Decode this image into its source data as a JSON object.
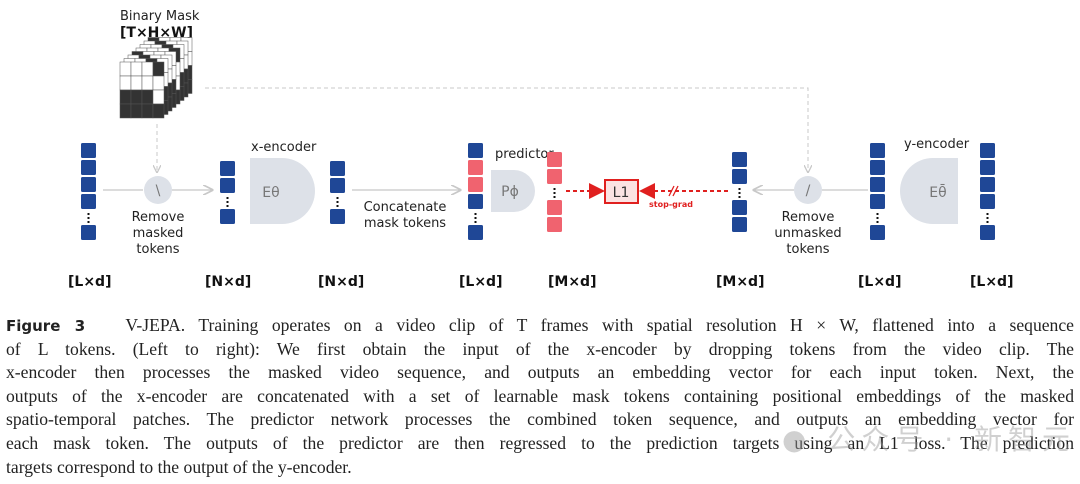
{
  "diagram": {
    "mask_title": "Binary Mask",
    "mask_dims": "[T×H×W]",
    "x_encoder_label": "x-encoder",
    "x_encoder_symbol": "Eθ",
    "predictor_label": "predictor",
    "predictor_symbol": "Pϕ",
    "y_encoder_label": "y-encoder",
    "y_encoder_symbol": "Eθ̄",
    "loss_label": "L1",
    "stop_grad_label": "stop-grad",
    "remove_masked": [
      "Remove",
      "masked",
      "tokens"
    ],
    "remove_unmasked": [
      "Remove",
      "unmasked",
      "tokens"
    ],
    "concatenate": [
      "Concatenate",
      "mask tokens"
    ],
    "remove_masked_symbol": "\\",
    "remove_unmasked_symbol": "/",
    "dims": [
      "[L×d]",
      "[N×d]",
      "[N×d]",
      "[L×d]",
      "[M×d]",
      "[M×d]",
      "[L×d]",
      "[L×d]"
    ],
    "colors": {
      "token_blue": "#1f4796",
      "mask_red": "#f0636f",
      "loss_red": "#e0201f",
      "shape_gray": "#dde1e8",
      "arrow_gray": "#c8c8c8"
    }
  },
  "caption": {
    "label": "Figure 3",
    "lines": [
      "V-JEPA. Training operates on a video clip of T frames with spatial resolution H × W, flattened into a sequence",
      "of L tokens. (Left to right): We first obtain the input of the x-encoder by dropping tokens from the video clip. The",
      "x-encoder then processes the masked video sequence, and outputs an embedding vector for each input token. Next, the",
      "outputs of the x-encoder are concatenated with a set of learnable mask tokens containing positional embeddings of the masked",
      "spatio-temporal patches. The predictor network processes the combined token sequence, and outputs an embedding vector for",
      "each mask token. The outputs of the predictor are then regressed to the prediction targets using an L1 loss. The prediction",
      "targets correspond to the output of the y-encoder."
    ]
  },
  "watermark": "公众号 · 新智元"
}
